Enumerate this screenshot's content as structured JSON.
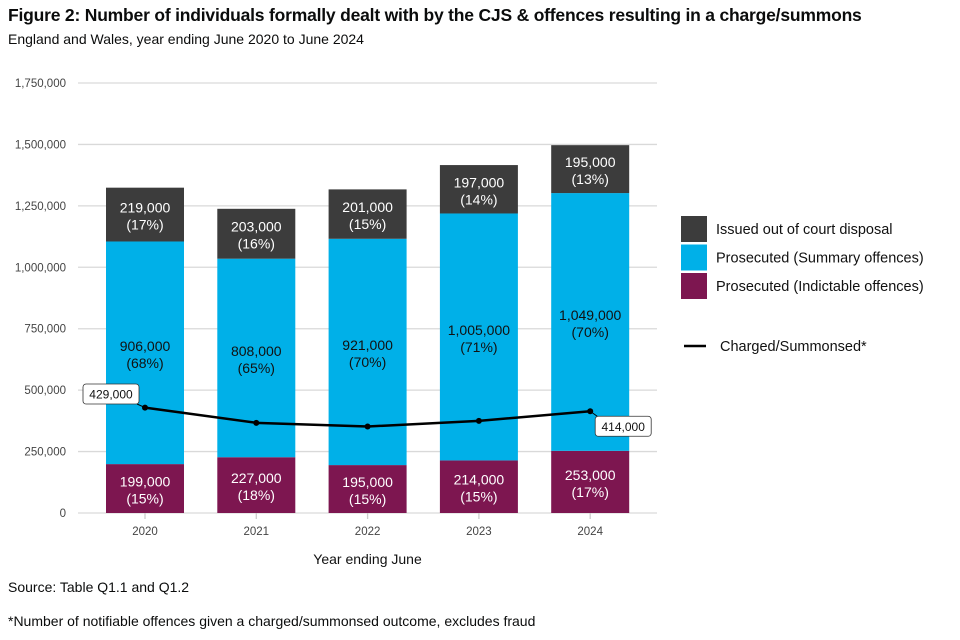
{
  "header": {
    "title": "Figure 2: Number of individuals formally dealt with by the CJS & offences resulting in a charge/summons",
    "subtitle": "England and Wales, year ending June 2020 to June 2024"
  },
  "footer": {
    "source": "Source: Table Q1.1 and Q1.2",
    "footnote": "*Number of notifiable offences given a charged/summonsed outcome, excludes fraud"
  },
  "chart_data": {
    "type": "bar",
    "stacked": true,
    "title": "Figure 2: Number of individuals formally dealt with by the CJS & offences resulting in a charge/summons",
    "subtitle": "England and Wales, year ending June 2020 to June 2024",
    "xlabel": "Year ending June",
    "ylabel": "",
    "categories": [
      "2020",
      "2021",
      "2022",
      "2023",
      "2024"
    ],
    "ylim": [
      0,
      1750000
    ],
    "yticks": [
      0,
      250000,
      500000,
      750000,
      1000000,
      1250000,
      1500000,
      1750000
    ],
    "ytick_labels": [
      "0",
      "250,000",
      "500,000",
      "750,000",
      "1,000,000",
      "1,250,000",
      "1,500,000",
      "1,750,000"
    ],
    "grid": true,
    "legend_position": "right",
    "series": [
      {
        "name": "Prosecuted (Indictable offences)",
        "color": "#7d1650",
        "label_color": "#ffffff",
        "values": [
          199000,
          227000,
          195000,
          214000,
          253000
        ],
        "value_labels": [
          "199,000",
          "227,000",
          "195,000",
          "214,000",
          "253,000"
        ],
        "pct_labels": [
          "(15%)",
          "(18%)",
          "(15%)",
          "(15%)",
          "(17%)"
        ]
      },
      {
        "name": "Prosecuted (Summary offences)",
        "color": "#00b0e8",
        "label_color": "#111111",
        "values": [
          906000,
          808000,
          921000,
          1005000,
          1049000
        ],
        "value_labels": [
          "906,000",
          "808,000",
          "921,000",
          "1,005,000",
          "1,049,000"
        ],
        "pct_labels": [
          "(68%)",
          "(65%)",
          "(70%)",
          "(71%)",
          "(70%)"
        ]
      },
      {
        "name": "Issued out of court disposal",
        "color": "#3c3c3c",
        "label_color": "#ffffff",
        "values": [
          219000,
          203000,
          201000,
          197000,
          195000
        ],
        "value_labels": [
          "219,000",
          "203,000",
          "201,000",
          "197,000",
          "195,000"
        ],
        "pct_labels": [
          "(17%)",
          "(16%)",
          "(15%)",
          "(14%)",
          "(13%)"
        ]
      }
    ],
    "line": {
      "name": "Charged/Summonsed*",
      "color": "#000000",
      "values": [
        429000,
        367000,
        352000,
        375000,
        414000
      ],
      "annotations": [
        {
          "index": 0,
          "label": "429,000"
        },
        {
          "index": 4,
          "label": "414,000"
        }
      ]
    },
    "legend": [
      {
        "label": "Issued out of court disposal",
        "color": "#3c3c3c",
        "kind": "box"
      },
      {
        "label": "Prosecuted (Summary offences)",
        "color": "#00b0e8",
        "kind": "box"
      },
      {
        "label": "Prosecuted (Indictable offences)",
        "color": "#7d1650",
        "kind": "box"
      },
      {
        "label": "Charged/Summonsed*",
        "color": "#000000",
        "kind": "line"
      }
    ]
  }
}
